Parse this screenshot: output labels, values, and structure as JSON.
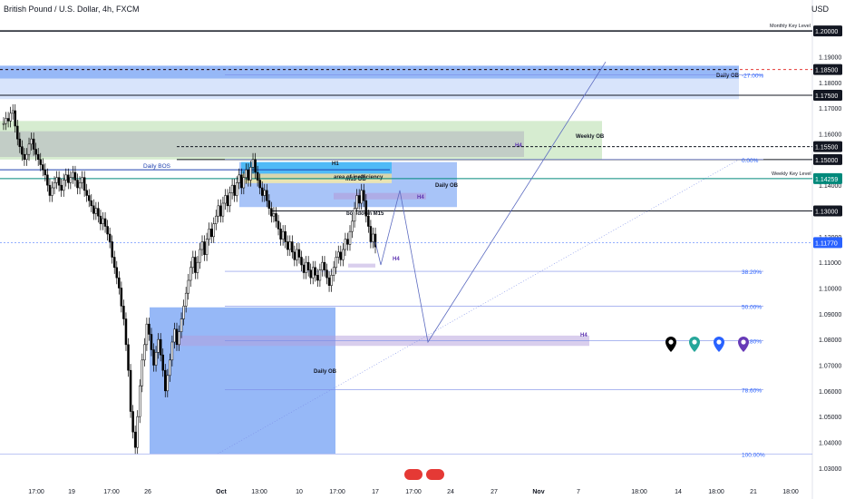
{
  "header": {
    "title": "British Pound / U.S. Dollar, 4h, FXCM",
    "currency": "USD"
  },
  "chart_data": {
    "type": "candlestick",
    "symbol": "GBPUSD",
    "timeframe": "4h",
    "ylim": [
      1.025,
      1.205
    ],
    "y_ticks": [
      "1.03000",
      "1.04000",
      "1.05000",
      "1.06000",
      "1.07000",
      "1.08000",
      "1.09000",
      "1.10000",
      "1.11000",
      "1.12000",
      "1.13000",
      "1.14000",
      "1.15000",
      "1.16000",
      "1.17000",
      "1.18000",
      "1.19000"
    ],
    "x_ticks": [
      "17:00",
      "19",
      "17:00",
      "26",
      "Oct",
      "13:00",
      "10",
      "17:00",
      "17",
      "17:00",
      "24",
      "27",
      "Nov",
      "7",
      "18:00",
      "14",
      "18:00",
      "21",
      "18:00"
    ],
    "price_flags": [
      {
        "label": "1.20000",
        "value": 1.2,
        "style": "dark"
      },
      {
        "label": "1.18500",
        "value": 1.185,
        "style": "dark"
      },
      {
        "label": "1.17500",
        "value": 1.175,
        "style": "dark"
      },
      {
        "label": "1.15500",
        "value": 1.155,
        "style": "dark"
      },
      {
        "label": "1.15000",
        "value": 1.15,
        "style": "dark"
      },
      {
        "label": "1.14259",
        "value": 1.14259,
        "style": "green"
      },
      {
        "label": "1.13000",
        "value": 1.13,
        "style": "dark"
      },
      {
        "label": "1.11770",
        "value": 1.1177,
        "style": "blue"
      }
    ],
    "key_levels": [
      {
        "label": "Monthly Key Level",
        "value": 1.2
      },
      {
        "label": "Weekly Key Level",
        "value": 1.14259
      }
    ],
    "fib_levels": [
      {
        "label": "-27.00%",
        "value": 1.183
      },
      {
        "label": "0.00%",
        "value": 1.15
      },
      {
        "label": "38.20%",
        "value": 1.1065
      },
      {
        "label": "50.00%",
        "value": 1.093
      },
      {
        "label": "61.80%",
        "value": 1.0795
      },
      {
        "label": "78.60%",
        "value": 1.0605
      },
      {
        "label": "100.00%",
        "value": 1.0355
      }
    ],
    "zones": [
      {
        "label": "Daily OB",
        "top": 1.1865,
        "bottom": 1.1815,
        "color": "#3f7df0",
        "opacity": 0.55
      },
      {
        "label": "",
        "top": 1.1815,
        "bottom": 1.1735,
        "color": "#9dbcf6",
        "opacity": 0.4
      },
      {
        "label": "Weekly OB",
        "top": 1.165,
        "bottom": 1.15,
        "color": "#c8e6c0",
        "opacity": 0.75
      },
      {
        "label": "H4",
        "top": 1.161,
        "bottom": 1.151,
        "color": "#b2b5be",
        "opacity": 0.55
      },
      {
        "label": "Daily OB",
        "top": 1.149,
        "bottom": 1.1315,
        "color": "#3f7df0",
        "opacity": 0.45
      },
      {
        "label": "H1",
        "top": 1.149,
        "bottom": 1.1445,
        "color": "#29b6f6",
        "opacity": 0.7
      },
      {
        "label": "area of inefficiency",
        "top": 1.1445,
        "bottom": 1.1415,
        "color": "#e0d9a0",
        "opacity": 0.85
      },
      {
        "label": "m15 OB",
        "top": 1.1422,
        "bottom": 1.1408,
        "color": "#ede7b0",
        "opacity": 0.9
      },
      {
        "label": "H4",
        "top": 1.137,
        "bottom": 1.1345,
        "color": "#b39ddb",
        "opacity": 0.6
      },
      {
        "label": "H4",
        "top": 1.1095,
        "bottom": 1.108,
        "color": "#b39ddb",
        "opacity": 0.5
      },
      {
        "label": "Daily OB",
        "top": 1.0925,
        "bottom": 1.0355,
        "color": "#3f7df0",
        "opacity": 0.55
      },
      {
        "label": "H4",
        "top": 1.0815,
        "bottom": 1.0775,
        "color": "#b39ddb",
        "opacity": 0.5
      }
    ],
    "annotations": [
      {
        "label": "Daily BOS",
        "value": 1.146
      },
      {
        "label": "bos down M15",
        "value": 1.1285
      }
    ],
    "candles_close": [
      1.164,
      1.166,
      1.165,
      1.168,
      1.169,
      1.163,
      1.158,
      1.155,
      1.152,
      1.15,
      1.152,
      1.156,
      1.158,
      1.154,
      1.152,
      1.15,
      1.148,
      1.146,
      1.144,
      1.14,
      1.136,
      1.139,
      1.141,
      1.143,
      1.14,
      1.138,
      1.142,
      1.144,
      1.141,
      1.143,
      1.145,
      1.142,
      1.139,
      1.141,
      1.143,
      1.138,
      1.136,
      1.134,
      1.132,
      1.129,
      1.131,
      1.128,
      1.125,
      1.127,
      1.124,
      1.121,
      1.118,
      1.112,
      1.108,
      1.104,
      1.1,
      1.093,
      1.088,
      1.078,
      1.068,
      1.052,
      1.044,
      1.038,
      1.05,
      1.062,
      1.072,
      1.078,
      1.086,
      1.082,
      1.076,
      1.07,
      1.075,
      1.08,
      1.074,
      1.068,
      1.06,
      1.066,
      1.072,
      1.079,
      1.084,
      1.078,
      1.083,
      1.088,
      1.093,
      1.098,
      1.103,
      1.108,
      1.112,
      1.106,
      1.11,
      1.115,
      1.118,
      1.113,
      1.119,
      1.123,
      1.12,
      1.125,
      1.128,
      1.132,
      1.128,
      1.133,
      1.136,
      1.132,
      1.137,
      1.14,
      1.136,
      1.141,
      1.144,
      1.139,
      1.143,
      1.146,
      1.142,
      1.147,
      1.15,
      1.145,
      1.142,
      1.139,
      1.136,
      1.138,
      1.134,
      1.131,
      1.128,
      1.129,
      1.126,
      1.123,
      1.119,
      1.122,
      1.118,
      1.115,
      1.118,
      1.114,
      1.111,
      1.115,
      1.112,
      1.109,
      1.106,
      1.11,
      1.107,
      1.104,
      1.108,
      1.105,
      1.103,
      1.107,
      1.11,
      1.107,
      1.104,
      1.101,
      1.105,
      1.108,
      1.112,
      1.114,
      1.111,
      1.115,
      1.119,
      1.117,
      1.122,
      1.126,
      1.131,
      1.136,
      1.133,
      1.138,
      1.134,
      1.128,
      1.124,
      1.118,
      1.121,
      1.116
    ],
    "projection": [
      {
        "date_index": 164,
        "value": 1.118
      },
      {
        "date_index": 168,
        "value": 1.109
      },
      {
        "date_index": 173,
        "value": 1.138
      },
      {
        "date_index": 184,
        "value": 1.079
      },
      {
        "date_index": 265,
        "value": 1.188
      }
    ],
    "markers": [
      {
        "color": "#000000"
      },
      {
        "color": "#26a69a"
      },
      {
        "color": "#2962ff"
      },
      {
        "color": "#673ab7"
      }
    ]
  }
}
